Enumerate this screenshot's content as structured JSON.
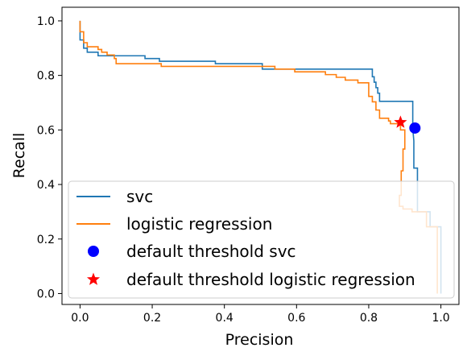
{
  "chart_data": {
    "type": "line",
    "xlabel": "Precision",
    "ylabel": "Recall",
    "xlim": [
      -0.05,
      1.05
    ],
    "ylim": [
      -0.04,
      1.05
    ],
    "xticks": [
      0.0,
      0.2,
      0.4,
      0.6,
      0.8,
      1.0
    ],
    "yticks": [
      0.0,
      0.2,
      0.4,
      0.6,
      0.8,
      1.0
    ],
    "xtick_labels": [
      "0.0",
      "0.2",
      "0.4",
      "0.6",
      "0.8",
      "1.0"
    ],
    "ytick_labels": [
      "0.0",
      "0.2",
      "0.4",
      "0.6",
      "0.8",
      "1.0"
    ],
    "grid": false,
    "legend_position": "lower-left",
    "series": [
      {
        "name": "svc",
        "kind": "line",
        "color": "#1f77b4",
        "points": [
          [
            0.0,
            1.0
          ],
          [
            0.0,
            0.93
          ],
          [
            0.01,
            0.93
          ],
          [
            0.01,
            0.9
          ],
          [
            0.02,
            0.9
          ],
          [
            0.02,
            0.885
          ],
          [
            0.05,
            0.885
          ],
          [
            0.05,
            0.872
          ],
          [
            0.18,
            0.872
          ],
          [
            0.18,
            0.862
          ],
          [
            0.22,
            0.862
          ],
          [
            0.22,
            0.852
          ],
          [
            0.375,
            0.852
          ],
          [
            0.375,
            0.843
          ],
          [
            0.505,
            0.843
          ],
          [
            0.505,
            0.823
          ],
          [
            0.81,
            0.823
          ],
          [
            0.81,
            0.795
          ],
          [
            0.815,
            0.795
          ],
          [
            0.815,
            0.775
          ],
          [
            0.82,
            0.775
          ],
          [
            0.82,
            0.755
          ],
          [
            0.825,
            0.755
          ],
          [
            0.825,
            0.735
          ],
          [
            0.83,
            0.735
          ],
          [
            0.83,
            0.705
          ],
          [
            0.922,
            0.705
          ],
          [
            0.922,
            0.605
          ],
          [
            0.925,
            0.56
          ],
          [
            0.925,
            0.46
          ],
          [
            0.935,
            0.46
          ],
          [
            0.935,
            0.3
          ],
          [
            0.97,
            0.3
          ],
          [
            0.97,
            0.245
          ],
          [
            1.0,
            0.245
          ],
          [
            1.0,
            0.0
          ]
        ]
      },
      {
        "name": "logistic regression",
        "kind": "line",
        "color": "#ff7f0e",
        "points": [
          [
            0.0,
            1.0
          ],
          [
            0.0,
            0.96
          ],
          [
            0.01,
            0.96
          ],
          [
            0.01,
            0.92
          ],
          [
            0.02,
            0.92
          ],
          [
            0.02,
            0.905
          ],
          [
            0.05,
            0.905
          ],
          [
            0.05,
            0.895
          ],
          [
            0.06,
            0.895
          ],
          [
            0.06,
            0.885
          ],
          [
            0.075,
            0.885
          ],
          [
            0.075,
            0.875
          ],
          [
            0.095,
            0.875
          ],
          [
            0.095,
            0.862
          ],
          [
            0.1,
            0.862
          ],
          [
            0.1,
            0.843
          ],
          [
            0.225,
            0.843
          ],
          [
            0.225,
            0.833
          ],
          [
            0.54,
            0.833
          ],
          [
            0.54,
            0.823
          ],
          [
            0.595,
            0.823
          ],
          [
            0.595,
            0.813
          ],
          [
            0.68,
            0.813
          ],
          [
            0.68,
            0.803
          ],
          [
            0.71,
            0.803
          ],
          [
            0.71,
            0.793
          ],
          [
            0.735,
            0.793
          ],
          [
            0.735,
            0.783
          ],
          [
            0.77,
            0.783
          ],
          [
            0.77,
            0.773
          ],
          [
            0.8,
            0.773
          ],
          [
            0.8,
            0.763
          ],
          [
            0.8,
            0.723
          ],
          [
            0.81,
            0.723
          ],
          [
            0.81,
            0.703
          ],
          [
            0.82,
            0.703
          ],
          [
            0.82,
            0.673
          ],
          [
            0.83,
            0.673
          ],
          [
            0.83,
            0.643
          ],
          [
            0.855,
            0.643
          ],
          [
            0.855,
            0.633
          ],
          [
            0.86,
            0.633
          ],
          [
            0.86,
            0.623
          ],
          [
            0.888,
            0.623
          ],
          [
            0.888,
            0.6
          ],
          [
            0.9,
            0.6
          ],
          [
            0.9,
            0.53
          ],
          [
            0.895,
            0.53
          ],
          [
            0.895,
            0.45
          ],
          [
            0.89,
            0.45
          ],
          [
            0.89,
            0.36
          ],
          [
            0.885,
            0.36
          ],
          [
            0.885,
            0.32
          ],
          [
            0.895,
            0.32
          ],
          [
            0.895,
            0.31
          ],
          [
            0.92,
            0.31
          ],
          [
            0.92,
            0.3
          ],
          [
            0.96,
            0.3
          ],
          [
            0.96,
            0.245
          ],
          [
            0.99,
            0.245
          ],
          [
            0.99,
            0.0
          ]
        ]
      },
      {
        "name": "default threshold svc",
        "kind": "marker",
        "marker": "circle",
        "color": "#0000ff",
        "x": 0.928,
        "y": 0.607
      },
      {
        "name": "default threshold logistic regression",
        "kind": "marker",
        "marker": "star",
        "color": "#ff0000",
        "x": 0.888,
        "y": 0.628
      }
    ]
  }
}
